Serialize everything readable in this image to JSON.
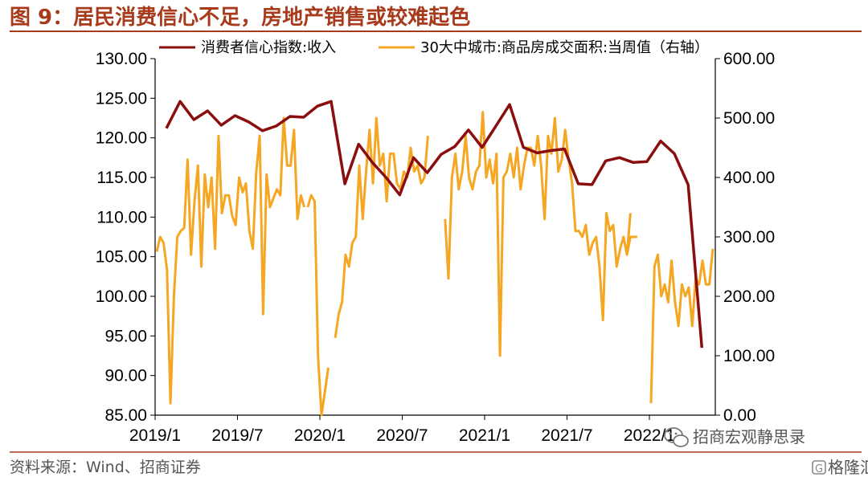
{
  "title": "图 9：居民消费信心不足，房地产销售或较难起色",
  "source": "资料来源：Wind、招商证券",
  "watermark": {
    "wechat_name": "招商宏观静思录",
    "brand": "格隆汇"
  },
  "colors": {
    "title": "#a83a1c",
    "rule": "#a83a1c",
    "series_confidence": "#8b0e0e",
    "series_sales": "#f5a623",
    "axis": "#000000"
  },
  "chart_data": {
    "type": "line",
    "title": "图 9：居民消费信心不足，房地产销售或较难起色",
    "x_tick_labels": [
      "2019/1",
      "2019/7",
      "2020/1",
      "2020/7",
      "2021/1",
      "2021/7",
      "2022/1"
    ],
    "x_range_months": [
      "2019/1",
      "2022/5"
    ],
    "left_axis": {
      "ticks": [
        "130.00",
        "125.00",
        "120.00",
        "115.00",
        "110.00",
        "105.00",
        "100.00",
        "95.00",
        "90.00",
        "85.00"
      ],
      "ylim": [
        85,
        130
      ]
    },
    "right_axis": {
      "ticks": [
        "600.00",
        "500.00",
        "400.00",
        "300.00",
        "200.00",
        "100.00",
        "0.00"
      ],
      "ylim": [
        0,
        600
      ]
    },
    "legend_position": "top",
    "series": [
      {
        "name": "消费者信心指数:收入",
        "axis": "left",
        "x": [
          "2019/1",
          "2019/2",
          "2019/3",
          "2019/4",
          "2019/5",
          "2019/6",
          "2019/7",
          "2019/8",
          "2019/9",
          "2019/10",
          "2019/11",
          "2019/12",
          "2020/1",
          "2020/2",
          "2020/3",
          "2020/4",
          "2020/5",
          "2020/6",
          "2020/7",
          "2020/8",
          "2020/9",
          "2020/10",
          "2020/11",
          "2020/12",
          "2021/1",
          "2021/2",
          "2021/3",
          "2021/4",
          "2021/5",
          "2021/6",
          "2021/7",
          "2021/8",
          "2021/9",
          "2021/10",
          "2021/11",
          "2021/12",
          "2022/1",
          "2022/2",
          "2022/3",
          "2022/4"
        ],
        "values": [
          121.2,
          124.6,
          122.3,
          123.4,
          121.6,
          122.8,
          122.0,
          120.9,
          121.5,
          122.7,
          122.6,
          124.0,
          124.6,
          114.2,
          119.2,
          116.9,
          115.0,
          112.8,
          117.5,
          115.6,
          117.9,
          118.9,
          121.0,
          118.8,
          121.5,
          124.2,
          118.8,
          118.1,
          118.4,
          118.6,
          114.2,
          114.1,
          117.1,
          117.5,
          116.9,
          117.0,
          119.6,
          118.0,
          114.1,
          93.5
        ]
      },
      {
        "name": "30大中城市:商品房成交面积:当周值（右轴）",
        "axis": "right",
        "segments": [
          {
            "x": [
              "2019/1.0",
              "2019/1.25",
              "2019/1.5",
              "2019/1.75",
              "2019/2.0",
              "2019/2.25",
              "2019/2.5",
              "2019/2.75",
              "2019/3.0",
              "2019/3.25",
              "2019/3.5",
              "2019/3.75",
              "2019/4.0",
              "2019/4.25",
              "2019/4.5",
              "2019/4.75",
              "2019/5.0",
              "2019/5.25",
              "2019/5.5",
              "2019/5.75",
              "2019/6.0",
              "2019/6.25",
              "2019/6.5",
              "2019/6.75",
              "2019/7.0",
              "2019/7.25",
              "2019/7.5",
              "2019/7.75",
              "2019/8.0",
              "2019/8.25",
              "2019/8.5",
              "2019/8.75",
              "2019/9.0",
              "2019/9.25",
              "2019/9.5",
              "2019/9.75",
              "2019/10.0",
              "2019/10.25",
              "2019/10.5",
              "2019/10.75",
              "2019/11.0",
              "2019/11.25",
              "2019/11.5",
              "2019/11.75"
            ],
            "values": [
              275,
              300,
              290,
              245,
              20,
              200,
              300,
              310,
              315,
              430,
              270,
              360,
              420,
              250,
              405,
              350,
              400,
              280,
              470,
              340,
              370,
              370,
              335,
              320,
              400,
              375,
              390,
              310,
              280,
              410,
              470,
              170,
              405,
              350,
              365,
              380,
              370,
              500,
              420,
              420,
              480,
              330,
              370,
              350
            ]
          },
          {
            "x": [
              "2019/12.0",
              "2019/12.25",
              "2019/12.5",
              "2019/12.75",
              "2020/1.0",
              "2020/1.25",
              "2020/1.5"
            ],
            "values": [
              350,
              370,
              360,
              100,
              0,
              40,
              80
            ]
          },
          {
            "x": [
              "2020/2.0",
              "2020/2.25",
              "2020/2.5",
              "2020/2.75",
              "2020/3.0",
              "2020/3.25",
              "2020/3.5",
              "2020/3.75",
              "2020/4.0",
              "2020/4.25",
              "2020/4.5",
              "2020/4.75",
              "2020/5.0",
              "2020/5.25",
              "2020/5.5",
              "2020/5.75",
              "2020/6.0",
              "2020/6.25",
              "2020/6.5",
              "2020/6.75",
              "2020/7.0",
              "2020/7.25",
              "2020/7.5",
              "2020/7.75",
              "2020/8.0",
              "2020/8.25",
              "2020/8.5",
              "2020/8.75"
            ],
            "values": [
              130,
              170,
              190,
              270,
              250,
              290,
              300,
              420,
              330,
              410,
              480,
              390,
              500,
              420,
              440,
              360,
              440,
              440,
              390,
              380,
              410,
              400,
              450,
              410,
              420,
              390,
              400,
              470
            ]
          },
          {
            "x": [
              "2020/10.0",
              "2020/10.25",
              "2020/10.5",
              "2020/10.75",
              "2020/11.0",
              "2020/11.25",
              "2020/11.5",
              "2020/11.75",
              "2020/12.0",
              "2020/12.25",
              "2020/12.5",
              "2020/12.75",
              "2021/1.0",
              "2021/1.25",
              "2021/1.5",
              "2021/1.75",
              "2021/2.0",
              "2021/2.25",
              "2021/2.5",
              "2021/2.75",
              "2021/3.0",
              "2021/3.25",
              "2021/3.5",
              "2021/3.75",
              "2021/4.0",
              "2021/4.25",
              "2021/4.5",
              "2021/4.75",
              "2021/5.0",
              "2021/5.25",
              "2021/5.5",
              "2021/5.75",
              "2021/6.0",
              "2021/6.25",
              "2021/6.5",
              "2021/6.75",
              "2021/7.0",
              "2021/7.25",
              "2021/7.5",
              "2021/7.75",
              "2021/8.0",
              "2021/8.25",
              "2021/8.5",
              "2021/8.75",
              "2021/9.0",
              "2021/9.25",
              "2021/9.5",
              "2021/9.75",
              "2021/10.0",
              "2021/10.25",
              "2021/10.5",
              "2021/10.75",
              "2021/11.0",
              "2021/11.25",
              "2021/11.5"
            ],
            "values": [
              330,
              230,
              400,
              440,
              380,
              410,
              470,
              400,
              380,
              410,
              420,
              510,
              400,
              430,
              390,
              440,
              100,
              400,
              410,
              440,
              400,
              450,
              380,
              420,
              450,
              450,
              420,
              470,
              420,
              330,
              470,
              440,
              500,
              410,
              430,
              480,
              430,
              390,
              310,
              310,
              300,
              320,
              270,
              290,
              300,
              250,
              160,
              340,
              310,
              320,
              250,
              280,
              300,
              270,
              340
            ]
          },
          {
            "x": [
              "2021/11.25",
              "2021/11.5",
              "2021/11.75",
              "2021/12.0"
            ],
            "values": [
              270,
              300,
              300,
              300
            ]
          },
          {
            "x": [
              "2022/1.0",
              "2022/1.25",
              "2022/1.5",
              "2022/1.75",
              "2022/2.0",
              "2022/2.25",
              "2022/2.5",
              "2022/2.75",
              "2022/3.0",
              "2022/3.25",
              "2022/3.5",
              "2022/3.75",
              "2022/4.0",
              "2022/4.25",
              "2022/4.5",
              "2022/4.75",
              "2022/5.0",
              "2022/5.25",
              "2022/5.5"
            ],
            "values": [
              20,
              250,
              270,
              200,
              220,
              190,
              260,
              190,
              150,
              220,
              200,
              215,
              150,
              230,
              220,
              260,
              220,
              220,
              280
            ]
          }
        ]
      }
    ]
  }
}
